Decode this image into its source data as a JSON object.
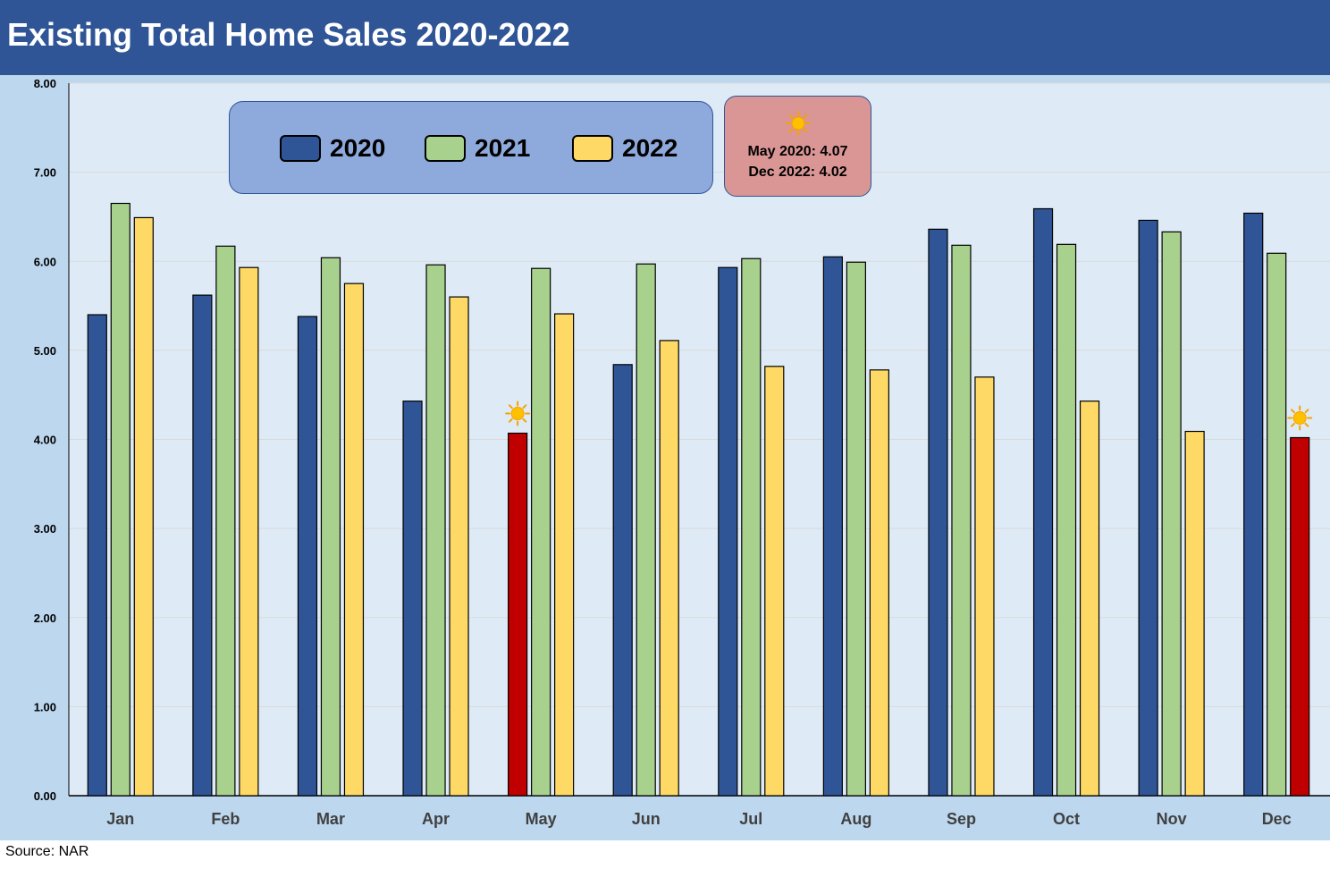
{
  "title": "Existing Total Home Sales 2020-2022",
  "source": "Source: NAR",
  "note": {
    "icon": "sun-icon",
    "lines": [
      "May 2020: 4.07",
      "Dec 2022: 4.02"
    ]
  },
  "colors": {
    "title_bar": "#2f5597",
    "outer_background": "#bdd7ee",
    "plot_background": "#deebf7",
    "highlight": "#c00000",
    "legend_background": "#8ea9db",
    "note_background": "#d99694"
  },
  "chart_data": {
    "type": "bar",
    "title": "Existing Total Home Sales 2020-2022",
    "categories": [
      "Jan",
      "Feb",
      "Mar",
      "Apr",
      "May",
      "Jun",
      "Jul",
      "Aug",
      "Sep",
      "Oct",
      "Nov",
      "Dec"
    ],
    "series": [
      {
        "name": "2020",
        "color": "#2f5597",
        "values": [
          5.4,
          5.62,
          5.38,
          4.43,
          4.07,
          4.84,
          5.93,
          6.05,
          6.36,
          6.59,
          6.46,
          6.54
        ]
      },
      {
        "name": "2021",
        "color": "#a9d18e",
        "values": [
          6.65,
          6.17,
          6.04,
          5.96,
          5.92,
          5.97,
          6.03,
          5.99,
          6.18,
          6.19,
          6.33,
          6.09
        ]
      },
      {
        "name": "2022",
        "color": "#ffd966",
        "values": [
          6.49,
          5.93,
          5.75,
          5.6,
          5.41,
          5.11,
          4.82,
          4.78,
          4.7,
          4.43,
          4.09,
          4.02
        ]
      }
    ],
    "highlights": [
      {
        "series": "2020",
        "category": "May",
        "color": "#c00000",
        "marker": "sun-icon"
      },
      {
        "series": "2022",
        "category": "Dec",
        "color": "#c00000",
        "marker": "sun-icon"
      }
    ],
    "ylim": [
      0,
      8
    ],
    "yticks": [
      "0.00",
      "1.00",
      "2.00",
      "3.00",
      "4.00",
      "5.00",
      "6.00",
      "7.00",
      "8.00"
    ],
    "grid": true,
    "legend_position": "top-left"
  }
}
